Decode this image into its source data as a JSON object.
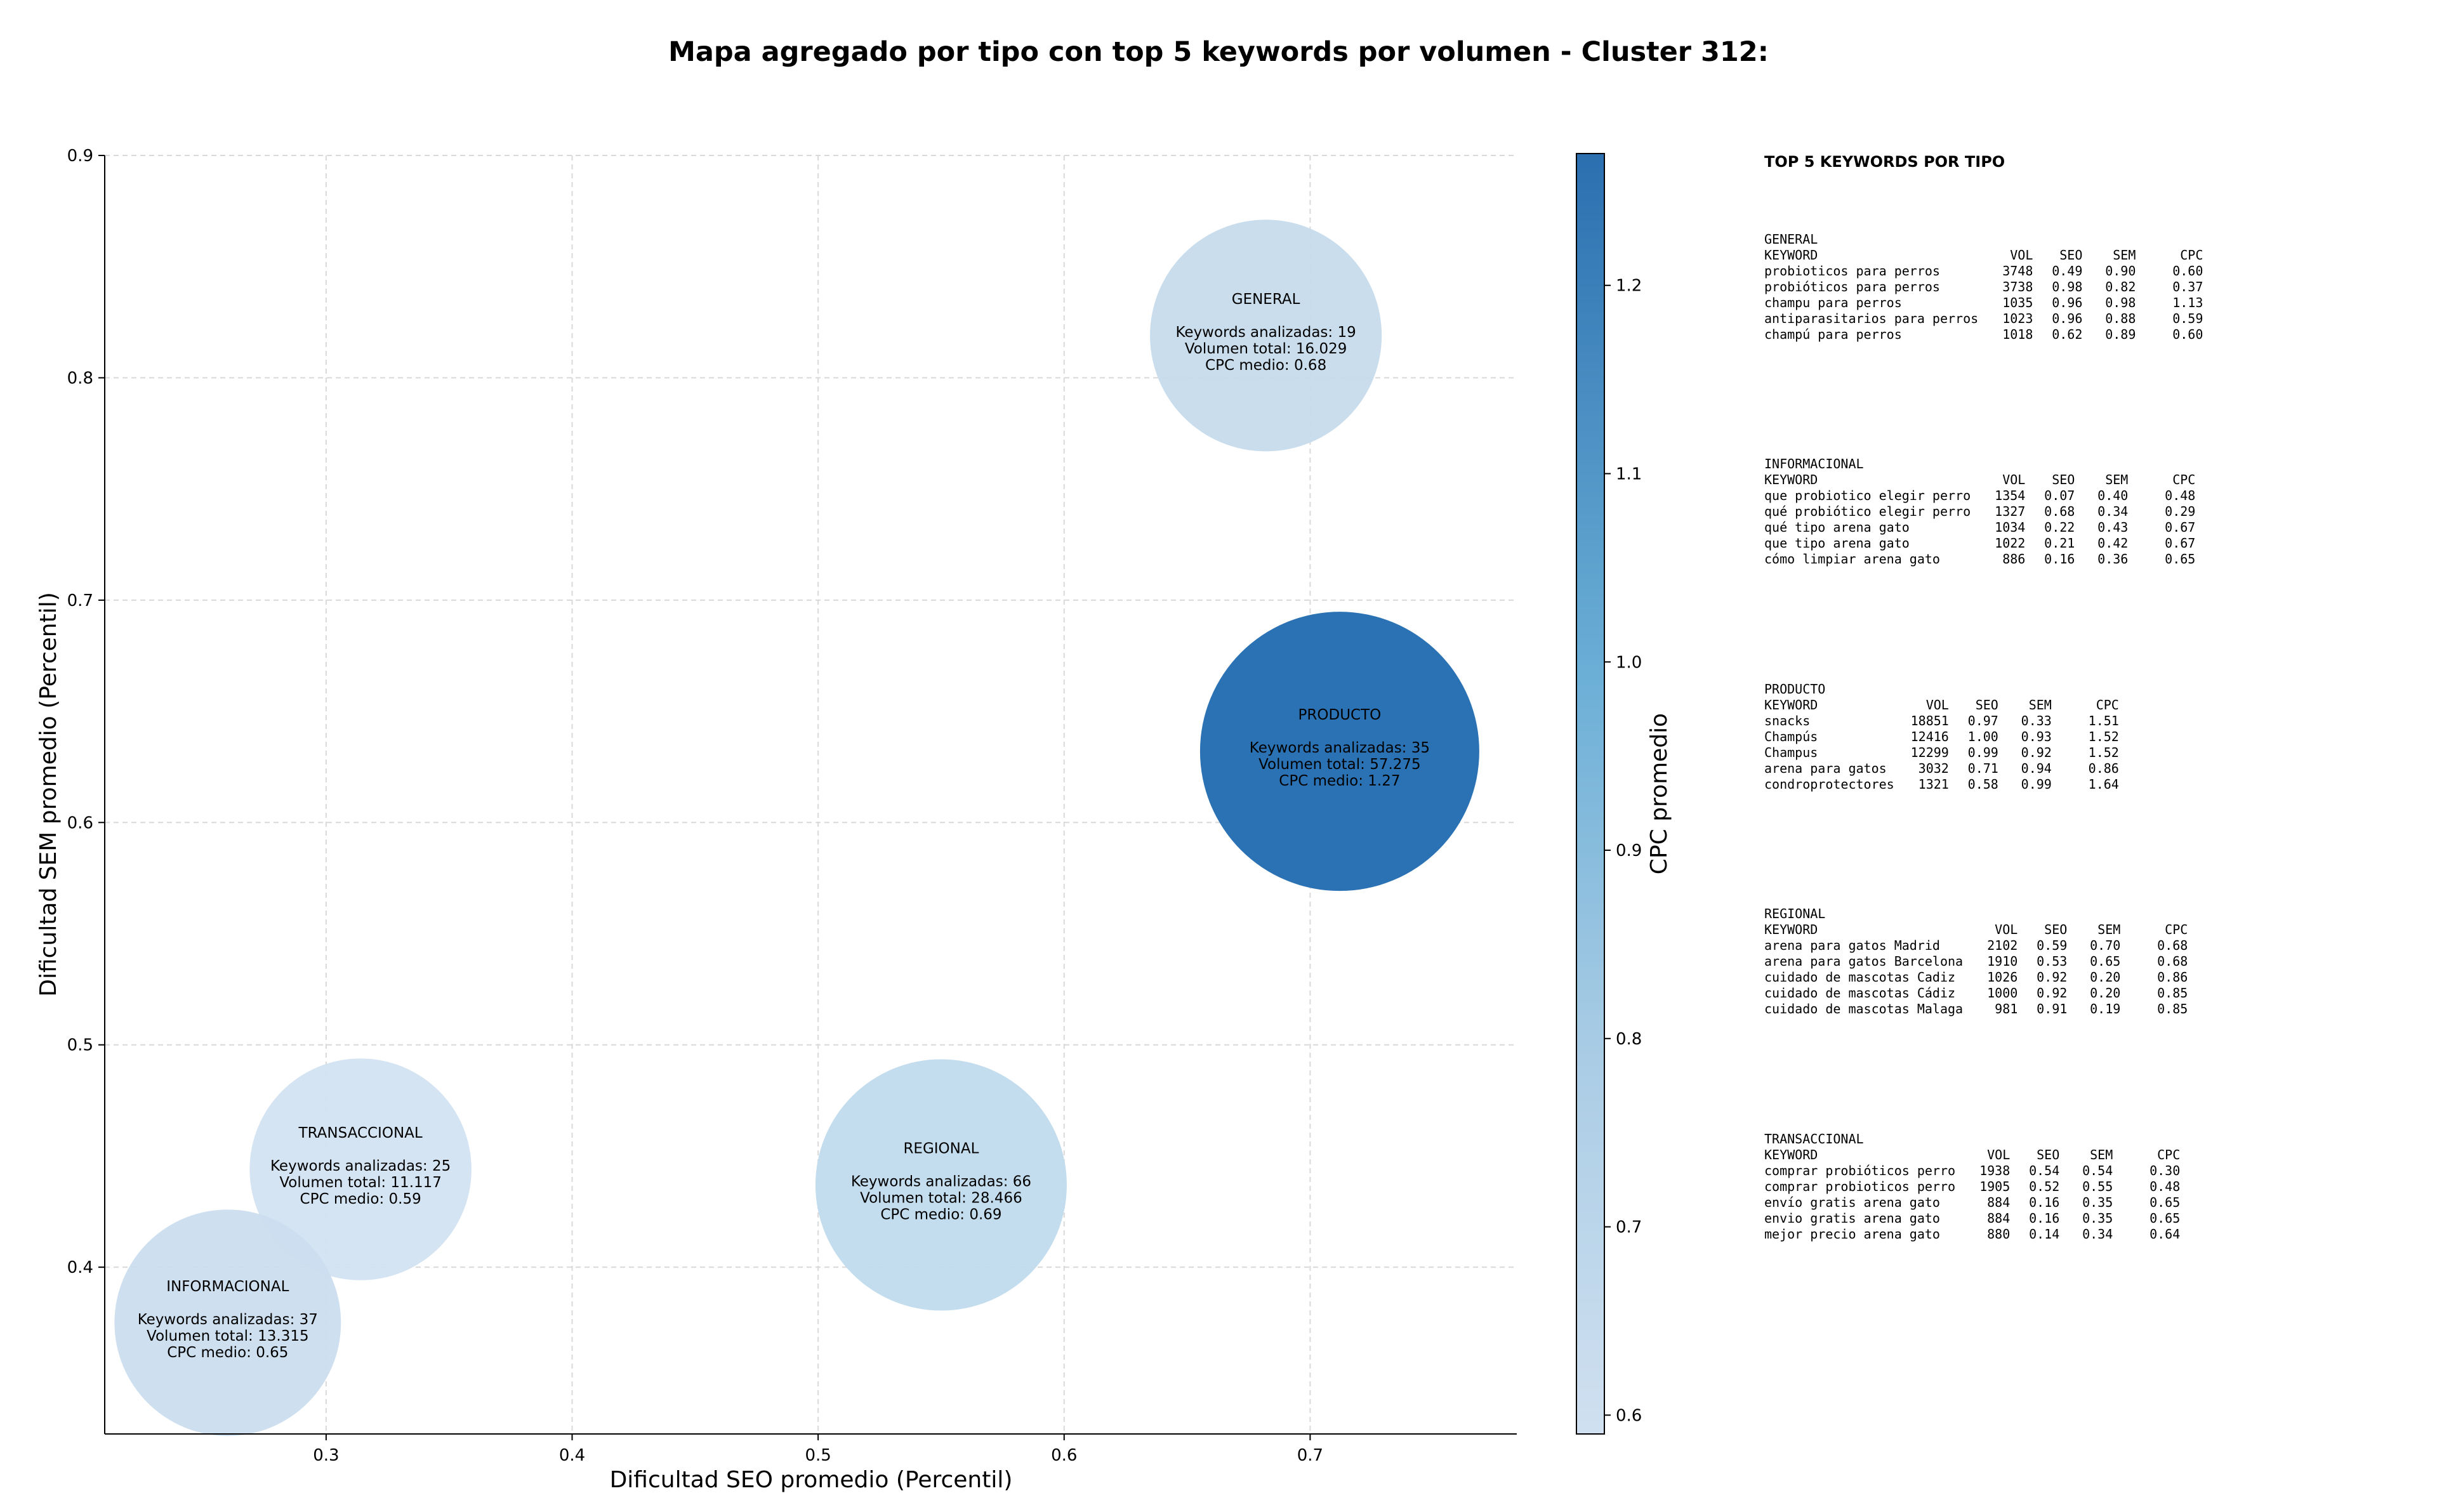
{
  "chart_data": {
    "type": "scatter",
    "title": "Mapa agregado por tipo con top 5 keywords por volumen - Cluster 312:",
    "xlabel": "Dificultad SEO promedio (Percentil)",
    "ylabel": "Dificultad SEM promedio (Percentil)",
    "xlim": [
      0.21,
      0.784
    ],
    "ylim": [
      0.325,
      0.9
    ],
    "xticks": [
      0.3,
      0.4,
      0.5,
      0.6,
      0.7
    ],
    "yticks": [
      0.4,
      0.5,
      0.6,
      0.7,
      0.8,
      0.9
    ],
    "grid": true,
    "colorbar": {
      "label": "CPC promedio",
      "min": 0.59,
      "max": 1.27,
      "ticks": [
        0.6,
        0.7,
        0.8,
        0.9,
        1.0,
        1.1,
        1.2
      ],
      "color_low": "#d0e0f0",
      "color_high": "#2b6fb0"
    },
    "points": [
      {
        "label": "GENERAL",
        "x": 0.682,
        "y": 0.819,
        "keywords_line": "Keywords analizadas: 19",
        "volume_line": "Volumen total: 16.029",
        "cpc_line": "CPC medio: 0.68",
        "cpc": 0.68,
        "volume": 16029,
        "color": "#c6dbec"
      },
      {
        "label": "PRODUCTO",
        "x": 0.712,
        "y": 0.632,
        "keywords_line": "Keywords analizadas: 35",
        "volume_line": "Volumen total: 57.275",
        "cpc_line": "CPC medio: 1.27",
        "cpc": 1.27,
        "volume": 57275,
        "color": "#2b72b4"
      },
      {
        "label": "REGIONAL",
        "x": 0.55,
        "y": 0.437,
        "keywords_line": "Keywords analizadas: 66",
        "volume_line": "Volumen total: 28.466",
        "cpc_line": "CPC medio: 0.69",
        "cpc": 0.69,
        "volume": 28466,
        "color": "#c0dbed"
      },
      {
        "label": "TRANSACCIONAL",
        "x": 0.314,
        "y": 0.444,
        "keywords_line": "Keywords analizadas: 25",
        "volume_line": "Volumen total: 11.117",
        "cpc_line": "CPC medio: 0.59",
        "cpc": 0.59,
        "volume": 11117,
        "color": "#d3e3f2"
      },
      {
        "label": "INFORMACIONAL",
        "x": 0.26,
        "y": 0.375,
        "keywords_line": "Keywords analizadas: 37",
        "volume_line": "Volumen total: 13.315",
        "cpc_line": "CPC medio: 0.65",
        "cpc": 0.65,
        "volume": 13315,
        "color": "#cbddee"
      }
    ]
  },
  "panel": {
    "heading": "TOP 5 KEYWORDS POR TIPO",
    "columns": [
      "KEYWORD",
      "VOL",
      "SEO",
      "SEM",
      "CPC"
    ],
    "groups": [
      {
        "name": "GENERAL",
        "rows": [
          [
            "probioticos para perros",
            "3748",
            "0.49",
            "0.90",
            "0.60"
          ],
          [
            "probióticos para perros",
            "3738",
            "0.98",
            "0.82",
            "0.37"
          ],
          [
            "champu para perros",
            "1035",
            "0.96",
            "0.98",
            "1.13"
          ],
          [
            "antiparasitarios para perros",
            "1023",
            "0.96",
            "0.88",
            "0.59"
          ],
          [
            "champú para perros",
            "1018",
            "0.62",
            "0.89",
            "0.60"
          ]
        ]
      },
      {
        "name": "INFORMACIONAL",
        "rows": [
          [
            "que probiotico elegir perro",
            "1354",
            "0.07",
            "0.40",
            "0.48"
          ],
          [
            "qué probiótico elegir perro",
            "1327",
            "0.68",
            "0.34",
            "0.29"
          ],
          [
            "qué tipo arena gato",
            "1034",
            "0.22",
            "0.43",
            "0.67"
          ],
          [
            "que tipo arena gato",
            "1022",
            "0.21",
            "0.42",
            "0.67"
          ],
          [
            "cómo limpiar arena gato",
            "886",
            "0.16",
            "0.36",
            "0.65"
          ]
        ]
      },
      {
        "name": "PRODUCTO",
        "rows": [
          [
            "snacks",
            "18851",
            "0.97",
            "0.33",
            "1.51"
          ],
          [
            "Champús",
            "12416",
            "1.00",
            "0.93",
            "1.52"
          ],
          [
            "Champus",
            "12299",
            "0.99",
            "0.92",
            "1.52"
          ],
          [
            "arena para gatos",
            "3032",
            "0.71",
            "0.94",
            "0.86"
          ],
          [
            "condroprotectores",
            "1321",
            "0.58",
            "0.99",
            "1.64"
          ]
        ]
      },
      {
        "name": "REGIONAL",
        "rows": [
          [
            "arena para gatos Madrid",
            "2102",
            "0.59",
            "0.70",
            "0.68"
          ],
          [
            "arena para gatos Barcelona",
            "1910",
            "0.53",
            "0.65",
            "0.68"
          ],
          [
            "cuidado de mascotas Cadiz",
            "1026",
            "0.92",
            "0.20",
            "0.86"
          ],
          [
            "cuidado de mascotas Cádiz",
            "1000",
            "0.92",
            "0.20",
            "0.85"
          ],
          [
            "cuidado de mascotas Malaga",
            "981",
            "0.91",
            "0.19",
            "0.85"
          ]
        ]
      },
      {
        "name": "TRANSACCIONAL",
        "rows": [
          [
            "comprar probióticos perro",
            "1938",
            "0.54",
            "0.54",
            "0.30"
          ],
          [
            "comprar probioticos perro",
            "1905",
            "0.52",
            "0.55",
            "0.48"
          ],
          [
            "envío gratis arena gato",
            "884",
            "0.16",
            "0.35",
            "0.65"
          ],
          [
            "envio gratis arena gato",
            "884",
            "0.16",
            "0.35",
            "0.65"
          ],
          [
            "mejor precio arena gato",
            "880",
            "0.14",
            "0.34",
            "0.64"
          ]
        ]
      }
    ]
  }
}
